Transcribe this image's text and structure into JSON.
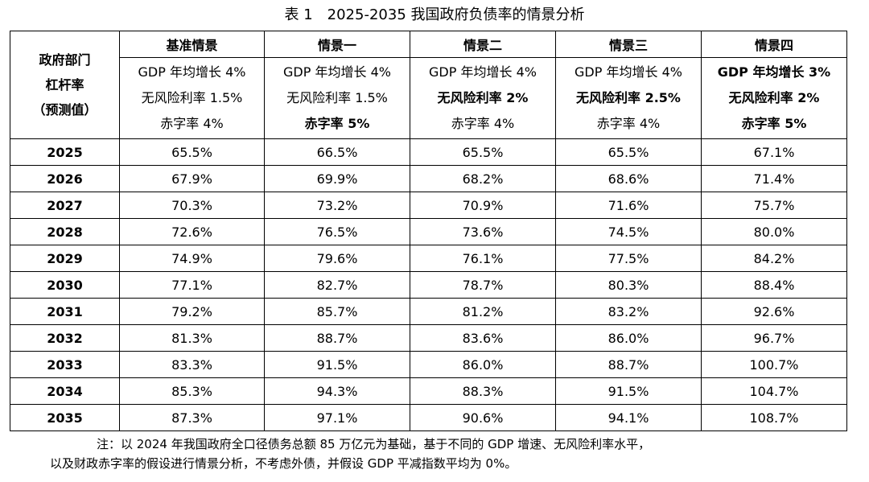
{
  "table": {
    "caption": "表 1　2025-2035 我国政府负债率的情景分析",
    "corner": [
      "政府部门",
      "杠杆率",
      "（预测值）"
    ],
    "scenarios": [
      {
        "name": "基准情景",
        "assumptions": [
          {
            "text": "GDP 年均增长 4%",
            "bold": false
          },
          {
            "text": "无风险利率 1.5%",
            "bold": false
          },
          {
            "text": "赤字率 4%",
            "bold": false
          }
        ]
      },
      {
        "name": "情景一",
        "assumptions": [
          {
            "text": "GDP 年均增长 4%",
            "bold": false
          },
          {
            "text": "无风险利率 1.5%",
            "bold": false
          },
          {
            "text": "赤字率 5%",
            "bold": true
          }
        ]
      },
      {
        "name": "情景二",
        "assumptions": [
          {
            "text": "GDP 年均增长 4%",
            "bold": false
          },
          {
            "text": "无风险利率 2%",
            "bold": true
          },
          {
            "text": "赤字率 4%",
            "bold": false
          }
        ]
      },
      {
        "name": "情景三",
        "assumptions": [
          {
            "text": "GDP 年均增长 4%",
            "bold": false
          },
          {
            "text": "无风险利率 2.5%",
            "bold": true
          },
          {
            "text": "赤字率 4%",
            "bold": false
          }
        ]
      },
      {
        "name": "情景四",
        "assumptions": [
          {
            "text": "GDP 年均增长 3%",
            "bold": true
          },
          {
            "text": "无风险利率 2%",
            "bold": true
          },
          {
            "text": "赤字率 5%",
            "bold": true
          }
        ]
      }
    ],
    "rows": [
      {
        "year": "2025",
        "values": [
          "65.5%",
          "66.5%",
          "65.5%",
          "65.5%",
          "67.1%"
        ]
      },
      {
        "year": "2026",
        "values": [
          "67.9%",
          "69.9%",
          "68.2%",
          "68.6%",
          "71.4%"
        ]
      },
      {
        "year": "2027",
        "values": [
          "70.3%",
          "73.2%",
          "70.9%",
          "71.6%",
          "75.7%"
        ]
      },
      {
        "year": "2028",
        "values": [
          "72.6%",
          "76.5%",
          "73.6%",
          "74.5%",
          "80.0%"
        ]
      },
      {
        "year": "2029",
        "values": [
          "74.9%",
          "79.6%",
          "76.1%",
          "77.5%",
          "84.2%"
        ]
      },
      {
        "year": "2030",
        "values": [
          "77.1%",
          "82.7%",
          "78.7%",
          "80.3%",
          "88.4%"
        ]
      },
      {
        "year": "2031",
        "values": [
          "79.2%",
          "85.7%",
          "81.2%",
          "83.2%",
          "92.6%"
        ]
      },
      {
        "year": "2032",
        "values": [
          "81.3%",
          "88.7%",
          "83.6%",
          "86.0%",
          "96.7%"
        ]
      },
      {
        "year": "2033",
        "values": [
          "83.3%",
          "91.5%",
          "86.0%",
          "88.7%",
          "100.7%"
        ]
      },
      {
        "year": "2034",
        "values": [
          "85.3%",
          "94.3%",
          "88.3%",
          "91.5%",
          "104.7%"
        ]
      },
      {
        "year": "2035",
        "values": [
          "87.3%",
          "97.1%",
          "90.6%",
          "94.1%",
          "108.7%"
        ]
      }
    ],
    "note": [
      "注：以 2024 年我国政府全口径债务总额 85 万亿元为基础，基于不同的 GDP 增速、无风险利率水平，",
      "以及财政赤字率的假设进行情景分析，不考虑外债，并假设 GDP 平减指数平均为 0%。"
    ]
  }
}
